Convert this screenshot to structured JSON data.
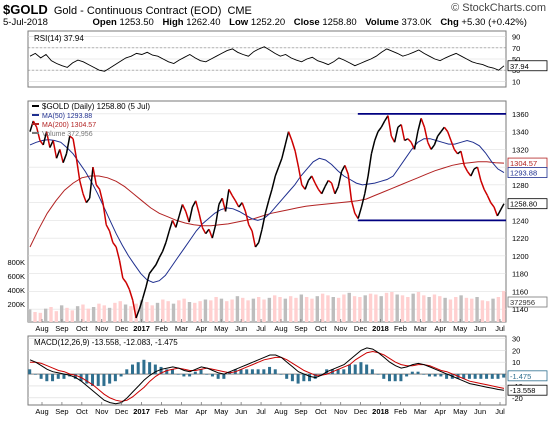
{
  "header": {
    "symbol": "$GOLD",
    "name": "Gold - Continuous Contract (EOD)",
    "exchange": "CME",
    "date": "5-Jul-2018",
    "open_label": "Open",
    "open": "1253.50",
    "high_label": "High",
    "high": "1262.40",
    "low_label": "Low",
    "low": "1252.20",
    "close_label": "Close",
    "close": "1258.80",
    "volume_label": "Volume",
    "volume": "373.0K",
    "chg_label": "Chg",
    "chg": "+5.30 (+0.42%)",
    "source": "© StockCharts.com"
  },
  "colors": {
    "price": "#000000",
    "price_red": "#cc0000",
    "ma50": "#1f2f8f",
    "ma200": "#b22222",
    "volume_up": "#ffd0d0",
    "volume_down": "#bdbdbd",
    "macd_line": "#000000",
    "macd_signal": "#cc0000",
    "macd_hist": "#2f6f8f",
    "support_line": "#000080",
    "grid": "#d8d8d8"
  },
  "chart_data": [
    {
      "type": "line",
      "panel": "rsi",
      "legend": "RSI(14) 37.94",
      "y_ticks": [
        "90",
        "70",
        "50",
        "30",
        "10"
      ],
      "ylim": [
        0,
        100
      ],
      "reference_lines": [
        30,
        70
      ],
      "last_value_label": "37.94",
      "series": [
        {
          "name": "RSI(14)",
          "values": [
            55,
            60,
            52,
            58,
            47,
            42,
            38,
            35,
            43,
            48,
            45,
            40,
            35,
            30,
            28,
            34,
            40,
            46,
            52,
            55,
            60,
            58,
            62,
            57,
            55,
            50,
            45,
            42,
            48,
            53,
            58,
            52,
            47,
            45,
            50,
            55,
            60,
            65,
            68,
            62,
            58,
            55,
            63,
            68,
            72,
            66,
            60,
            55,
            58,
            52,
            48,
            45,
            50,
            53,
            47,
            44,
            40,
            45,
            52,
            48,
            43,
            38,
            42,
            46,
            50,
            55,
            62,
            68,
            64,
            60,
            55,
            58,
            62,
            66,
            60,
            55,
            50,
            47,
            52,
            56,
            60,
            55,
            50,
            45,
            42,
            40,
            36,
            34,
            30,
            37.94
          ]
        }
      ]
    },
    {
      "type": "line",
      "panel": "price",
      "legend": [
        "$GOLD (Daily) 1258.80 (5 Jul)",
        "MA(50) 1293.88",
        "MA(200) 1304.57",
        "Volume 372,956"
      ],
      "y_ticks": [
        "1360",
        "1340",
        "1320",
        "1300",
        "1280",
        "1260",
        "1240",
        "1220",
        "1200",
        "1180",
        "1160",
        "1140"
      ],
      "volume_ticks": [
        "800K",
        "600K",
        "400K",
        "200K"
      ],
      "ylim": [
        1130,
        1370
      ],
      "x_ticks": [
        "Aug",
        "Sep",
        "Oct",
        "Nov",
        "Dec",
        "2017",
        "Feb",
        "Mar",
        "Apr",
        "May",
        "Jun",
        "Jul",
        "Aug",
        "Sep",
        "Oct",
        "Nov",
        "Dec",
        "2018",
        "Feb",
        "Mar",
        "Apr",
        "May",
        "Jun",
        "Jul"
      ],
      "price_labels": [
        "1304.57",
        "1293.88",
        "1258.80",
        "372956"
      ],
      "horizontal_lines": [
        1360,
        1240
      ],
      "series": [
        {
          "name": "$GOLD",
          "values": [
            1340,
            1352,
            1345,
            1330,
            1325,
            1340,
            1322,
            1330,
            1310,
            1320,
            1305,
            1315,
            1335,
            1332,
            1310,
            1285,
            1270,
            1260,
            1265,
            1300,
            1280,
            1275,
            1260,
            1235,
            1228,
            1215,
            1210,
            1195,
            1175,
            1170,
            1162,
            1150,
            1130,
            1140,
            1152,
            1165,
            1180,
            1185,
            1190,
            1198,
            1205,
            1215,
            1228,
            1240,
            1232,
            1245,
            1258,
            1250,
            1238,
            1255,
            1262,
            1248,
            1232,
            1225,
            1230,
            1220,
            1235,
            1258,
            1265,
            1250,
            1275,
            1268,
            1262,
            1255,
            1260,
            1250,
            1235,
            1228,
            1210,
            1215,
            1230,
            1248,
            1262,
            1275,
            1290,
            1300,
            1310,
            1325,
            1340,
            1330,
            1318,
            1300,
            1280,
            1275,
            1285,
            1290,
            1282,
            1275,
            1270,
            1278,
            1285,
            1282,
            1270,
            1278,
            1295,
            1302,
            1292,
            1262,
            1248,
            1242,
            1255,
            1270,
            1290,
            1315,
            1330,
            1340,
            1345,
            1352,
            1358,
            1335,
            1328,
            1345,
            1348,
            1330,
            1332,
            1328,
            1320,
            1340,
            1355,
            1345,
            1328,
            1320,
            1325,
            1335,
            1340,
            1345,
            1340,
            1330,
            1320,
            1315,
            1318,
            1302,
            1295,
            1290,
            1298,
            1300,
            1285,
            1275,
            1268,
            1260,
            1255,
            1245,
            1252,
            1258.8
          ]
        },
        {
          "name": "MA(50)",
          "values": [
            1325,
            1328,
            1330,
            1331,
            1330,
            1328,
            1322,
            1315,
            1305,
            1295,
            1283,
            1270,
            1255,
            1240,
            1225,
            1212,
            1200,
            1190,
            1180,
            1173,
            1170,
            1172,
            1178,
            1188,
            1198,
            1208,
            1218,
            1228,
            1236,
            1242,
            1248,
            1252,
            1254,
            1253,
            1250,
            1246,
            1242,
            1240,
            1242,
            1248,
            1256,
            1264,
            1272,
            1280,
            1290,
            1298,
            1306,
            1310,
            1308,
            1303,
            1296,
            1290,
            1286,
            1282,
            1280,
            1281,
            1282,
            1284,
            1286,
            1290,
            1300,
            1310,
            1320,
            1328,
            1332,
            1332,
            1330,
            1328,
            1326,
            1326,
            1328,
            1330,
            1328,
            1324,
            1316,
            1306,
            1298,
            1293.88
          ]
        },
        {
          "name": "MA(200)",
          "values": [
            1210,
            1230,
            1248,
            1262,
            1274,
            1282,
            1288,
            1290,
            1290,
            1288,
            1284,
            1278,
            1270,
            1262,
            1254,
            1248,
            1244,
            1240,
            1237,
            1235,
            1234,
            1234,
            1235,
            1236,
            1238,
            1240,
            1242,
            1245,
            1248,
            1250,
            1252,
            1254,
            1256,
            1257,
            1258,
            1259,
            1260,
            1261,
            1262,
            1264,
            1268,
            1272,
            1276,
            1280,
            1284,
            1288,
            1292,
            1296,
            1299,
            1302,
            1304,
            1305,
            1306,
            1306,
            1305,
            1304.57
          ]
        },
        {
          "name": "Volume",
          "values": [
            150,
            120,
            110,
            160,
            180,
            130,
            200,
            170,
            140,
            190,
            210,
            160,
            180,
            220,
            200,
            170,
            230,
            250,
            210,
            190,
            220,
            260,
            240,
            200,
            230,
            270,
            250,
            220,
            260,
            280,
            240,
            230,
            250,
            270,
            260,
            300,
            280,
            250,
            270,
            310,
            290,
            260,
            280,
            300,
            270,
            290,
            320,
            300,
            280,
            310,
            290,
            330,
            300,
            280,
            310,
            340,
            320,
            300,
            290,
            330,
            350,
            310,
            300,
            320,
            340,
            330,
            310,
            350,
            360,
            330,
            320,
            300,
            340,
            360,
            320,
            300,
            330,
            310,
            290,
            270,
            300,
            320,
            290,
            280,
            300,
            260,
            250,
            280,
            300,
            373
          ]
        }
      ]
    },
    {
      "type": "line",
      "panel": "macd",
      "legend": "MACD(12,26,9) -13.558, -12.083, -1.475",
      "y_ticks": [
        "30",
        "20",
        "10",
        "0",
        "-10",
        "-20"
      ],
      "ylim": [
        -26,
        32
      ],
      "x_ticks": [
        "Aug",
        "Sep",
        "Oct",
        "Nov",
        "Dec",
        "2017",
        "Feb",
        "Mar",
        "Apr",
        "May",
        "Jun",
        "Jul",
        "Aug",
        "Sep",
        "Oct",
        "Nov",
        "Dec",
        "2018",
        "Feb",
        "Mar",
        "Apr",
        "May",
        "Jun",
        "Jul"
      ],
      "last_value_labels": [
        "-1.475",
        "-13.558"
      ],
      "series": [
        {
          "name": "MACD",
          "values": [
            12,
            10,
            7,
            4,
            2,
            1,
            0,
            -1,
            -3,
            -6,
            -10,
            -14,
            -18,
            -22,
            -24,
            -25,
            -24,
            -20,
            -15,
            -10,
            -5,
            -1,
            2,
            4,
            5,
            6,
            5,
            3,
            2,
            4,
            6,
            5,
            3,
            1,
            0,
            2,
            4,
            6,
            8,
            10,
            12,
            14,
            16,
            16,
            14,
            10,
            6,
            2,
            0,
            -2,
            -3,
            -1,
            2,
            4,
            6,
            8,
            12,
            16,
            20,
            22,
            21,
            18,
            14,
            10,
            7,
            5,
            6,
            8,
            9,
            8,
            6,
            4,
            2,
            0,
            -2,
            -4,
            -6,
            -8,
            -9,
            -10,
            -11,
            -12,
            -13,
            -13.558
          ]
        },
        {
          "name": "Signal",
          "values": [
            10,
            10,
            9,
            7,
            5,
            3,
            2,
            0,
            -1,
            -3,
            -6,
            -9,
            -13,
            -17,
            -20,
            -22,
            -23,
            -22,
            -19,
            -15,
            -11,
            -6,
            -2,
            1,
            3,
            4,
            5,
            4,
            3,
            3,
            4,
            5,
            4,
            3,
            2,
            1,
            2,
            4,
            6,
            8,
            10,
            12,
            13,
            14,
            14,
            12,
            9,
            6,
            3,
            1,
            -1,
            -1,
            0,
            2,
            4,
            6,
            8,
            12,
            15,
            18,
            19,
            18,
            16,
            13,
            10,
            8,
            7,
            7,
            8,
            8,
            7,
            5,
            3,
            2,
            0,
            -2,
            -4,
            -6,
            -7,
            -8,
            -9,
            -10,
            -11,
            -12.083
          ]
        }
      ]
    }
  ]
}
